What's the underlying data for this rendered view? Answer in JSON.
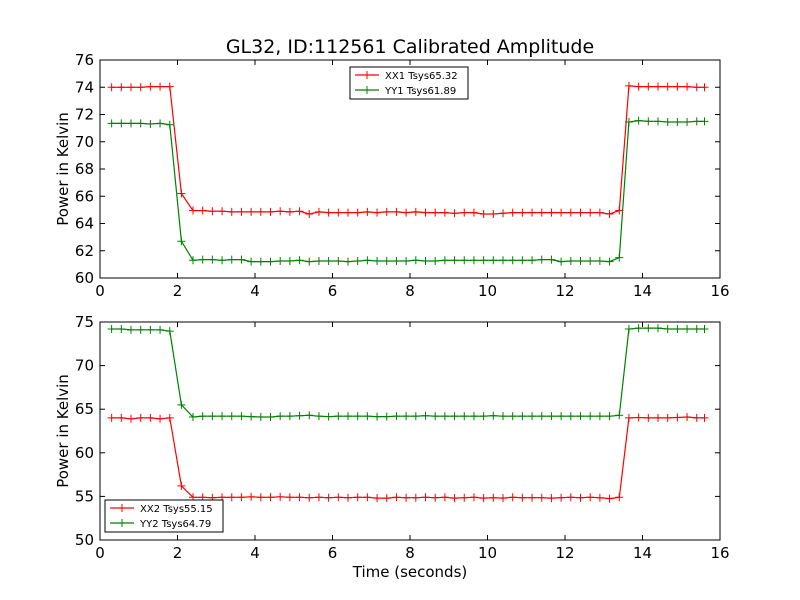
{
  "title": "GL32, ID:112561 Calibrated Amplitude",
  "chart_data": [
    {
      "type": "line",
      "xlabel": "",
      "ylabel": "Power in Kelvin",
      "xlim": [
        0,
        16
      ],
      "ylim": [
        60,
        76
      ],
      "xticks": [
        "0",
        "2",
        "4",
        "6",
        "8",
        "10",
        "12",
        "14",
        "16"
      ],
      "yticks": [
        "60",
        "62",
        "64",
        "66",
        "68",
        "70",
        "72",
        "74",
        "76"
      ],
      "legend_position": "top-center",
      "x": [
        0.3,
        0.55,
        0.8,
        1.05,
        1.3,
        1.55,
        1.8,
        2.1,
        2.4,
        2.65,
        2.9,
        3.15,
        3.4,
        3.65,
        3.9,
        4.15,
        4.4,
        4.65,
        4.9,
        5.15,
        5.4,
        5.65,
        5.9,
        6.15,
        6.4,
        6.65,
        6.9,
        7.15,
        7.4,
        7.65,
        7.9,
        8.15,
        8.4,
        8.65,
        8.9,
        9.15,
        9.4,
        9.65,
        9.9,
        10.15,
        10.4,
        10.65,
        10.9,
        11.15,
        11.4,
        11.65,
        11.9,
        12.15,
        12.4,
        12.65,
        12.9,
        13.15,
        13.4,
        13.65,
        13.9,
        14.15,
        14.4,
        14.65,
        14.9,
        15.15,
        15.4,
        15.6
      ],
      "series": [
        {
          "name": "XX1 Tsys65.32",
          "color": "#ff0000",
          "values": [
            74.0,
            74.0,
            74.0,
            74.0,
            74.05,
            74.05,
            74.05,
            66.2,
            64.95,
            64.95,
            64.9,
            64.9,
            64.85,
            64.85,
            64.85,
            64.85,
            64.85,
            64.9,
            64.85,
            64.9,
            64.7,
            64.85,
            64.8,
            64.8,
            64.8,
            64.8,
            64.85,
            64.8,
            64.85,
            64.85,
            64.8,
            64.85,
            64.8,
            64.8,
            64.8,
            64.75,
            64.8,
            64.8,
            64.7,
            64.7,
            64.75,
            64.8,
            64.8,
            64.8,
            64.8,
            64.8,
            64.8,
            64.8,
            64.8,
            64.8,
            64.8,
            64.7,
            64.95,
            74.1,
            74.05,
            74.05,
            74.05,
            74.05,
            74.05,
            74.05,
            74.0,
            74.0
          ]
        },
        {
          "name": "YY1 Tsys61.89",
          "color": "#008000",
          "values": [
            71.35,
            71.35,
            71.35,
            71.35,
            71.3,
            71.35,
            71.25,
            62.7,
            61.3,
            61.35,
            61.35,
            61.3,
            61.35,
            61.35,
            61.2,
            61.2,
            61.2,
            61.25,
            61.25,
            61.3,
            61.2,
            61.25,
            61.25,
            61.25,
            61.2,
            61.25,
            61.3,
            61.25,
            61.25,
            61.25,
            61.25,
            61.3,
            61.25,
            61.25,
            61.3,
            61.3,
            61.3,
            61.3,
            61.3,
            61.3,
            61.3,
            61.3,
            61.3,
            61.3,
            61.35,
            61.35,
            61.2,
            61.25,
            61.25,
            61.25,
            61.25,
            61.2,
            61.5,
            71.45,
            71.55,
            71.5,
            71.5,
            71.45,
            71.45,
            71.45,
            71.5,
            71.5
          ]
        }
      ]
    },
    {
      "type": "line",
      "xlabel": "Time (seconds)",
      "ylabel": "Power in Kelvin",
      "xlim": [
        0,
        16
      ],
      "ylim": [
        50,
        75
      ],
      "xticks": [
        "0",
        "2",
        "4",
        "6",
        "8",
        "10",
        "12",
        "14",
        "16"
      ],
      "yticks": [
        "50",
        "55",
        "60",
        "65",
        "70",
        "75"
      ],
      "legend_position": "bottom-left",
      "x": [
        0.3,
        0.55,
        0.8,
        1.05,
        1.3,
        1.55,
        1.8,
        2.1,
        2.4,
        2.65,
        2.9,
        3.15,
        3.4,
        3.65,
        3.9,
        4.15,
        4.4,
        4.65,
        4.9,
        5.15,
        5.4,
        5.65,
        5.9,
        6.15,
        6.4,
        6.65,
        6.9,
        7.15,
        7.4,
        7.65,
        7.9,
        8.15,
        8.4,
        8.65,
        8.9,
        9.15,
        9.4,
        9.65,
        9.9,
        10.15,
        10.4,
        10.65,
        10.9,
        11.15,
        11.4,
        11.65,
        11.9,
        12.15,
        12.4,
        12.65,
        12.9,
        13.15,
        13.4,
        13.65,
        13.9,
        14.15,
        14.4,
        14.65,
        14.9,
        15.15,
        15.4,
        15.6
      ],
      "series": [
        {
          "name": "XX2 Tsys55.15",
          "color": "#ff0000",
          "values": [
            64.0,
            64.0,
            63.9,
            64.0,
            64.0,
            63.9,
            64.0,
            56.2,
            54.9,
            54.9,
            54.85,
            54.9,
            54.9,
            54.9,
            54.95,
            54.9,
            54.9,
            54.95,
            54.9,
            54.9,
            54.85,
            54.9,
            54.85,
            54.9,
            54.85,
            54.9,
            54.9,
            54.8,
            54.8,
            54.9,
            54.85,
            54.85,
            54.9,
            54.85,
            54.9,
            54.8,
            54.85,
            54.9,
            54.8,
            54.85,
            54.8,
            54.9,
            54.85,
            54.85,
            54.85,
            54.8,
            54.85,
            54.9,
            54.85,
            54.9,
            54.85,
            54.75,
            54.9,
            64.0,
            64.05,
            64.0,
            64.0,
            64.0,
            64.05,
            64.1,
            64.0,
            64.0
          ]
        },
        {
          "name": "YY2 Tsys64.79",
          "color": "#008000",
          "values": [
            74.2,
            74.2,
            74.1,
            74.1,
            74.1,
            74.1,
            73.95,
            65.5,
            64.1,
            64.2,
            64.2,
            64.2,
            64.2,
            64.2,
            64.15,
            64.1,
            64.1,
            64.2,
            64.2,
            64.25,
            64.3,
            64.2,
            64.15,
            64.2,
            64.2,
            64.2,
            64.2,
            64.15,
            64.15,
            64.2,
            64.2,
            64.2,
            64.25,
            64.2,
            64.2,
            64.2,
            64.2,
            64.2,
            64.2,
            64.25,
            64.2,
            64.2,
            64.2,
            64.2,
            64.2,
            64.2,
            64.2,
            64.2,
            64.2,
            64.2,
            64.2,
            64.2,
            64.3,
            74.2,
            74.3,
            74.3,
            74.3,
            74.2,
            74.2,
            74.2,
            74.2,
            74.2
          ]
        }
      ]
    }
  ]
}
